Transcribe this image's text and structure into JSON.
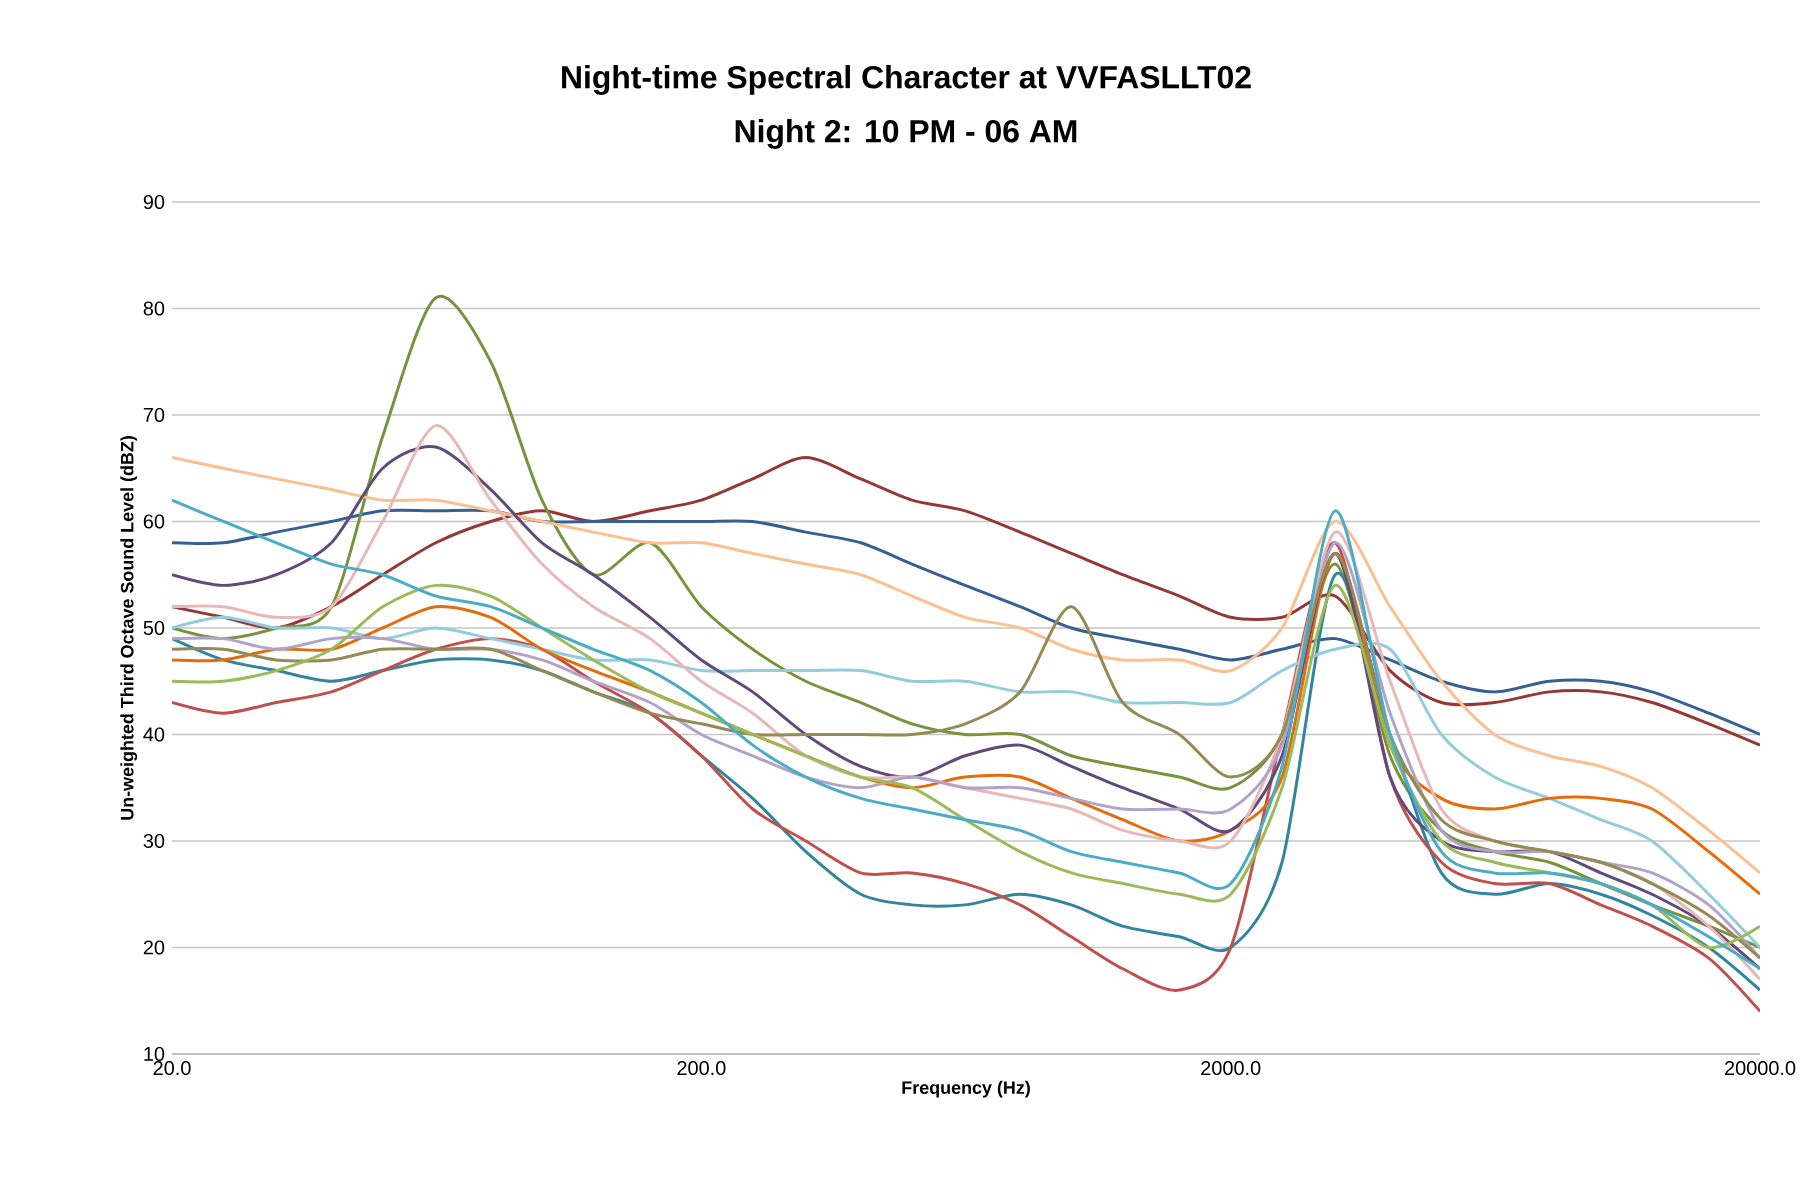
{
  "chart_data": {
    "type": "line",
    "title": "Night-time Spectral Character at VVFASLLT02",
    "subtitle": "Night 2: 10 PM - 06 AM",
    "xlabel": "Frequency (Hz)",
    "ylabel": "Un-weighted Third Octave Sound Level (dBZ)",
    "log": "x",
    "grid": "y",
    "marker": "none",
    "line_style": "solid",
    "xlim": [
      20,
      20000
    ],
    "ylim": [
      10,
      90
    ],
    "xticks": [
      {
        "value": 20,
        "label": "20.0"
      },
      {
        "value": 200,
        "label": "200.0"
      },
      {
        "value": 2000,
        "label": "2000.0"
      },
      {
        "value": 20000,
        "label": "20000.0"
      }
    ],
    "yticks": [
      10,
      20,
      30,
      40,
      50,
      60,
      70,
      80,
      90
    ],
    "x": [
      20,
      25,
      31.5,
      40,
      50,
      63,
      80,
      100,
      125,
      160,
      200,
      250,
      315,
      400,
      500,
      630,
      800,
      1000,
      1250,
      1600,
      2000,
      2500,
      3150,
      4000,
      5000,
      6300,
      8000,
      10000,
      12500,
      16000,
      20000
    ],
    "series": [
      {
        "color": "#953735",
        "values": [
          52,
          51,
          50,
          52,
          55,
          58,
          60,
          61,
          60,
          61,
          62,
          64,
          66,
          64,
          62,
          61,
          59,
          57,
          55,
          53,
          51,
          51,
          53,
          46,
          43,
          43,
          44,
          44,
          43,
          41,
          39
        ]
      },
      {
        "color": "#376092",
        "values": [
          58,
          58,
          59,
          60,
          61,
          61,
          61,
          60,
          60,
          60,
          60,
          60,
          59,
          58,
          56,
          54,
          52,
          50,
          49,
          48,
          47,
          48,
          49,
          47,
          45,
          44,
          45,
          45,
          44,
          42,
          40
        ]
      },
      {
        "color": "#77933c",
        "values": [
          50,
          49,
          50,
          52,
          68,
          81,
          75,
          62,
          55,
          58,
          52,
          48,
          45,
          43,
          41,
          40,
          40,
          38,
          37,
          36,
          35,
          40,
          56,
          38,
          31,
          29,
          28,
          26,
          24,
          22,
          20
        ]
      },
      {
        "color": "#fac090",
        "values": [
          66,
          65,
          64,
          63,
          62,
          62,
          61,
          60,
          59,
          58,
          58,
          57,
          56,
          55,
          53,
          51,
          50,
          48,
          47,
          47,
          46,
          50,
          60,
          52,
          45,
          40,
          38,
          37,
          35,
          31,
          27
        ]
      },
      {
        "color": "#31859c",
        "values": [
          49,
          47,
          46,
          45,
          46,
          47,
          47,
          46,
          44,
          42,
          38,
          34,
          29,
          25,
          24,
          24,
          25,
          24,
          22,
          21,
          20,
          28,
          55,
          40,
          27,
          25,
          26,
          25,
          23,
          20,
          16
        ]
      },
      {
        "color": "#c0504d",
        "values": [
          43,
          42,
          43,
          44,
          46,
          48,
          49,
          48,
          45,
          42,
          38,
          33,
          30,
          27,
          27,
          26,
          24,
          21,
          18,
          16,
          20,
          40,
          58,
          36,
          28,
          26,
          26,
          24,
          22,
          19,
          14
        ]
      },
      {
        "color": "#93cddd",
        "values": [
          50,
          51,
          50,
          50,
          49,
          50,
          49,
          48,
          47,
          47,
          46,
          46,
          46,
          46,
          45,
          45,
          44,
          44,
          43,
          43,
          43,
          46,
          48,
          48,
          40,
          36,
          34,
          32,
          30,
          25,
          20
        ]
      },
      {
        "color": "#e46c0a",
        "values": [
          47,
          47,
          48,
          48,
          50,
          52,
          51,
          48,
          46,
          44,
          42,
          40,
          38,
          36,
          35,
          36,
          36,
          34,
          32,
          30,
          31,
          36,
          57,
          39,
          34,
          33,
          34,
          34,
          33,
          29,
          25
        ]
      },
      {
        "color": "#604a7b",
        "values": [
          55,
          54,
          55,
          58,
          65,
          67,
          63,
          58,
          55,
          51,
          47,
          44,
          40,
          37,
          36,
          38,
          39,
          37,
          35,
          33,
          31,
          38,
          57,
          36,
          30,
          29,
          29,
          27,
          25,
          22,
          18
        ]
      },
      {
        "color": "#e6b9b8",
        "values": [
          52,
          52,
          51,
          52,
          60,
          69,
          62,
          56,
          52,
          49,
          45,
          42,
          38,
          36,
          36,
          35,
          34,
          33,
          31,
          30,
          30,
          40,
          59,
          45,
          33,
          30,
          29,
          28,
          26,
          22,
          17
        ]
      },
      {
        "color": "#b3a2c7",
        "values": [
          49,
          49,
          48,
          49,
          49,
          48,
          48,
          47,
          45,
          43,
          40,
          38,
          36,
          35,
          36,
          35,
          35,
          34,
          33,
          33,
          33,
          39,
          58,
          42,
          31,
          29,
          29,
          28,
          27,
          24,
          19
        ]
      },
      {
        "color": "#948a54",
        "values": [
          48,
          48,
          47,
          47,
          48,
          48,
          48,
          46,
          44,
          42,
          41,
          40,
          40,
          40,
          40,
          41,
          44,
          52,
          43,
          40,
          36,
          40,
          57,
          40,
          32,
          30,
          29,
          28,
          26,
          23,
          19
        ]
      },
      {
        "color": "#9bbb59",
        "values": [
          45,
          45,
          46,
          48,
          52,
          54,
          53,
          50,
          47,
          44,
          42,
          40,
          38,
          36,
          35,
          32,
          29,
          27,
          26,
          25,
          25,
          35,
          54,
          39,
          30,
          28,
          27,
          26,
          24,
          20,
          22
        ]
      },
      {
        "color": "#4bacc6",
        "values": [
          62,
          60,
          58,
          56,
          55,
          53,
          52,
          50,
          48,
          46,
          43,
          39,
          36,
          34,
          33,
          32,
          31,
          29,
          28,
          27,
          26,
          37,
          61,
          40,
          29,
          27,
          27,
          26,
          24,
          21,
          18
        ]
      }
    ]
  }
}
